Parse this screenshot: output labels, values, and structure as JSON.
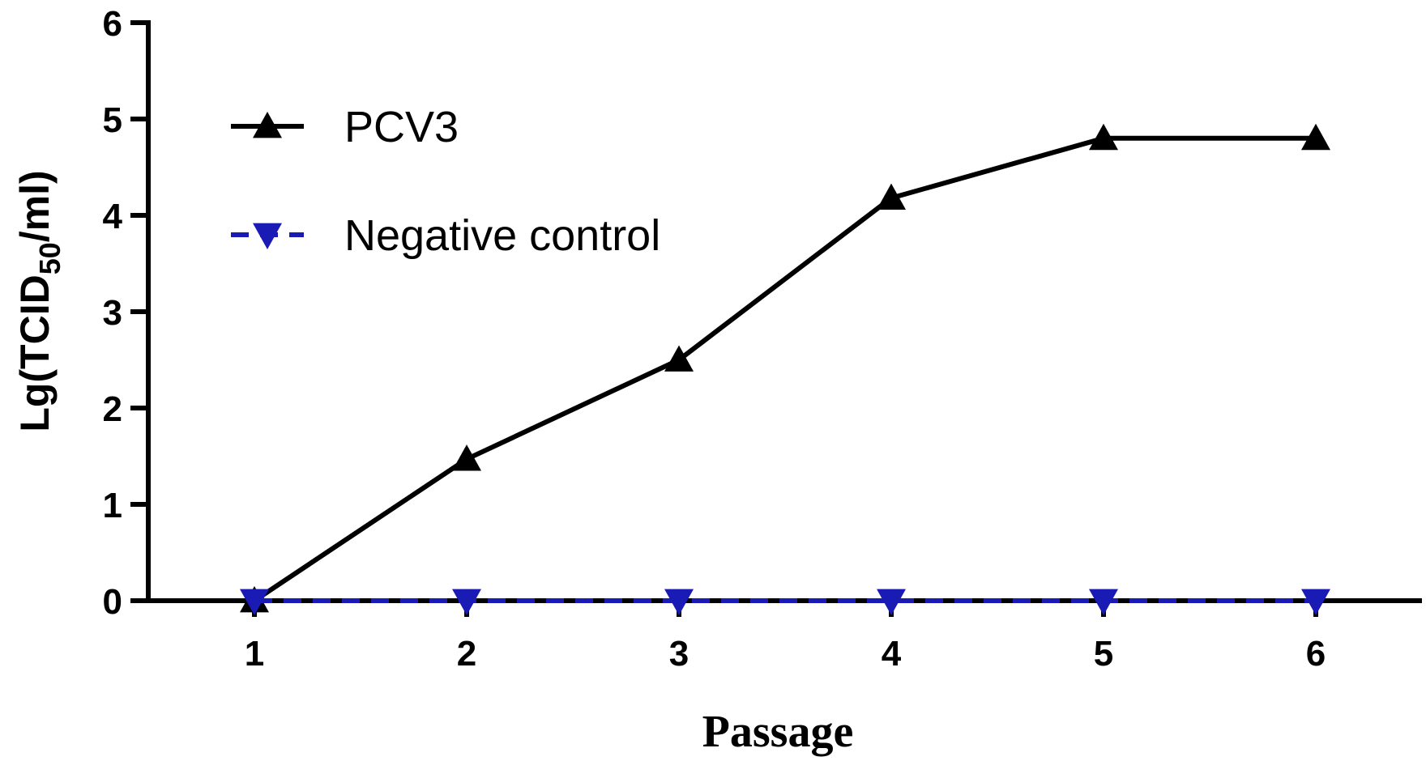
{
  "chart_data": {
    "type": "line",
    "x": [
      1,
      2,
      3,
      4,
      5,
      6
    ],
    "xticks": [
      "1",
      "2",
      "3",
      "4",
      "5",
      "6"
    ],
    "yticks": [
      "0",
      "1",
      "2",
      "3",
      "4",
      "5",
      "6"
    ],
    "xlim": [
      0.5,
      6.5
    ],
    "ylim": [
      0,
      6
    ],
    "xlabel": "Passage",
    "ylabel": {
      "prefix": "Lg(TCID",
      "subscript": "50",
      "suffix": "/ml)"
    },
    "title": "",
    "grid": false,
    "legend_position": "top-left",
    "series": [
      {
        "name": "PCV3",
        "values": [
          0,
          1.47,
          2.5,
          4.18,
          4.8,
          4.8
        ],
        "color": "#000000",
        "marker": "triangle-up",
        "line": "solid"
      },
      {
        "name": "Negative control",
        "values": [
          0,
          0,
          0,
          0,
          0,
          0
        ],
        "color": "#1a1ab5",
        "marker": "triangle-down",
        "line": "dashed"
      }
    ]
  }
}
